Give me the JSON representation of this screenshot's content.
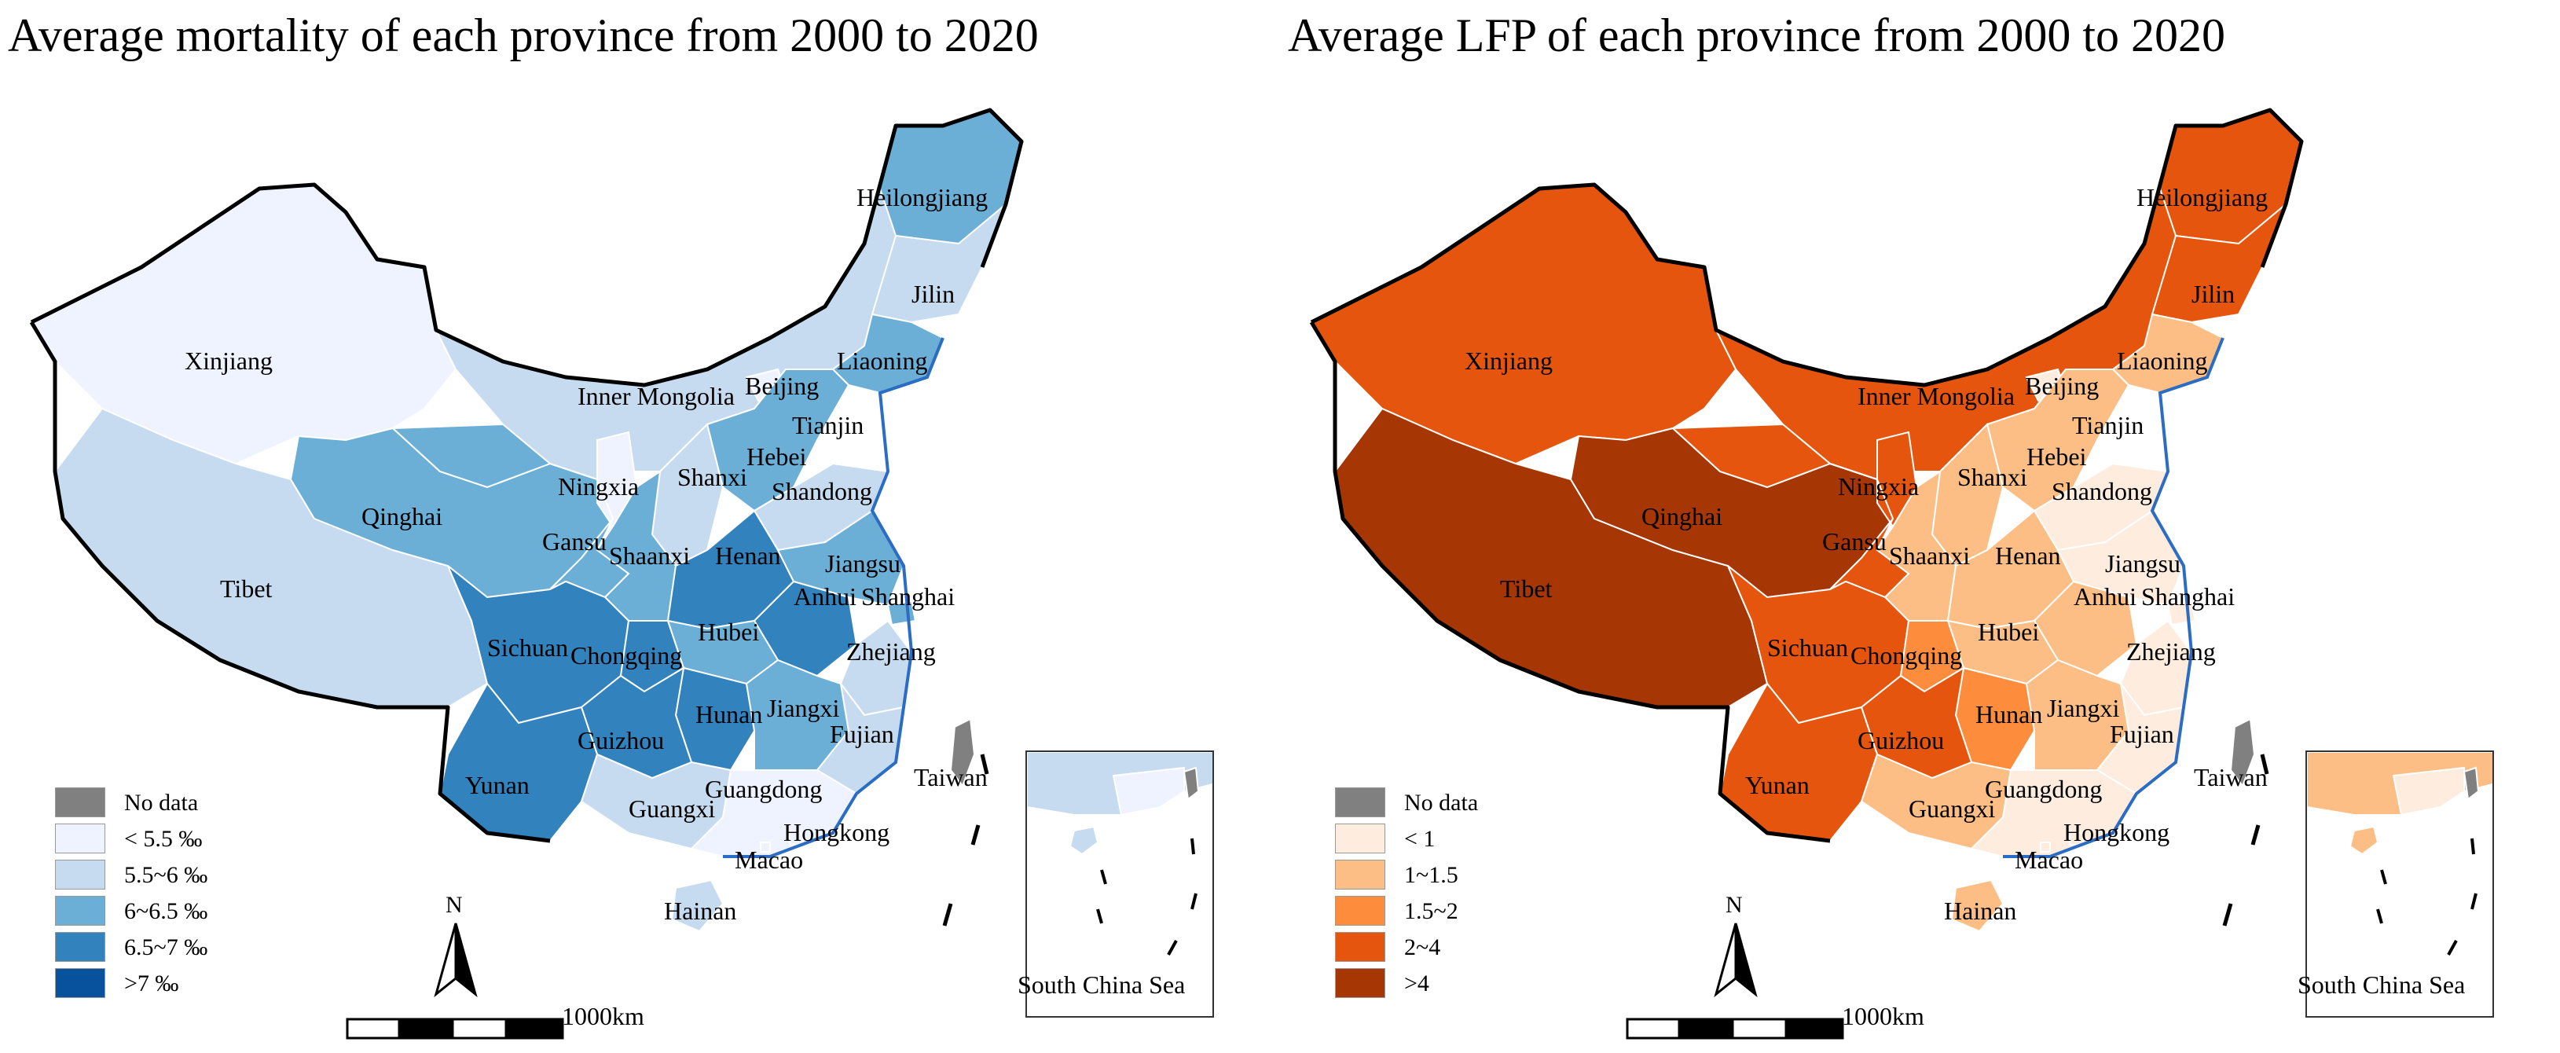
{
  "panels": [
    {
      "title": "Average mortality of each province from 2000 to 2020",
      "legend": [
        {
          "label": "No data",
          "color": "#808080"
        },
        {
          "label": "< 5.5 ‰",
          "color": "#eff3ff"
        },
        {
          "label": "5.5~6 ‰",
          "color": "#c6dbef"
        },
        {
          "label": "6~6.5 ‰",
          "color": "#6baed6"
        },
        {
          "label": "6.5~7 ‰",
          "color": "#3182bd"
        },
        {
          "label": ">7 ‰",
          "color": "#08519c"
        }
      ],
      "north_label": "N",
      "scale_label": "1000km",
      "inset_label": "South China Sea"
    },
    {
      "title": "Average LFP of each province from 2000 to 2020",
      "legend": [
        {
          "label": "No data",
          "color": "#808080"
        },
        {
          "label": "< 1",
          "color": "#feedde"
        },
        {
          "label": "1~1.5",
          "color": "#fdbe85"
        },
        {
          "label": "1.5~2",
          "color": "#fd8d3c"
        },
        {
          "label": "2~4",
          "color": "#e6550d"
        },
        {
          "label": ">4",
          "color": "#a63603"
        }
      ],
      "north_label": "N",
      "scale_label": "1000km",
      "inset_label": "South China Sea"
    }
  ],
  "provinces": {
    "xinjiang": "Xinjiang",
    "tibet": "Tibet",
    "qinghai": "Qinghai",
    "inner_mongolia": "Inner Mongolia",
    "heilongjiang": "Heilongjiang",
    "jilin": "Jilin",
    "liaoning": "Liaoning",
    "beijing": "Beijing",
    "tianjin": "Tianjin",
    "hebei": "Hebei",
    "shanxi": "Shanxi",
    "shandong": "Shandong",
    "ningxia": "Ningxia",
    "gansu": "Gansu",
    "shaanxi": "Shaanxi",
    "henan": "Henan",
    "jiangsu": "Jiangsu",
    "anhui": "Anhui",
    "shanghai": "Shanghai",
    "sichuan": "Sichuan",
    "chongqing": "Chongqing",
    "hubei": "Hubei",
    "zhejiang": "Zhejiang",
    "hunan": "Hunan",
    "jiangxi": "Jiangxi",
    "guizhou": "Guizhou",
    "fujian": "Fujian",
    "taiwan": "Taiwan",
    "yunan": "Yunan",
    "guangxi": "Guangxi",
    "guangdong": "Guangdong",
    "hongkong": "Hongkong",
    "macao": "Macao",
    "hainan": "Hainan"
  },
  "classes": {
    "mortality": {
      "xinjiang": 1,
      "tibet": 2,
      "qinghai": 3,
      "inner_mongolia": 2,
      "heilongjiang": 3,
      "jilin": 2,
      "liaoning": 3,
      "beijing": 1,
      "tianjin": 1,
      "hebei": 3,
      "shanxi": 2,
      "shandong": 2,
      "ningxia": 1,
      "gansu": 3,
      "shaanxi": 3,
      "henan": 4,
      "jiangsu": 3,
      "anhui": 4,
      "shanghai": 3,
      "sichuan": 4,
      "chongqing": 4,
      "hubei": 3,
      "zhejiang": 2,
      "hunan": 4,
      "jiangxi": 3,
      "guizhou": 4,
      "fujian": 2,
      "taiwan": 0,
      "yunan": 4,
      "guangxi": 2,
      "guangdong": 1,
      "hongkong": 1,
      "macao": 1,
      "hainan": 2
    },
    "lfp": {
      "xinjiang": 4,
      "tibet": 5,
      "qinghai": 5,
      "inner_mongolia": 4,
      "heilongjiang": 4,
      "jilin": 4,
      "liaoning": 2,
      "beijing": 1,
      "tianjin": 1,
      "hebei": 2,
      "shanxi": 2,
      "shandong": 1,
      "ningxia": 4,
      "gansu": 4,
      "shaanxi": 2,
      "henan": 2,
      "jiangsu": 1,
      "anhui": 2,
      "shanghai": 1,
      "sichuan": 4,
      "chongqing": 3,
      "hubei": 2,
      "zhejiang": 1,
      "hunan": 3,
      "jiangxi": 2,
      "guizhou": 4,
      "fujian": 1,
      "taiwan": 0,
      "yunan": 4,
      "guangxi": 2,
      "guangdong": 1,
      "hongkong": 1,
      "macao": 1,
      "hainan": 2
    }
  }
}
